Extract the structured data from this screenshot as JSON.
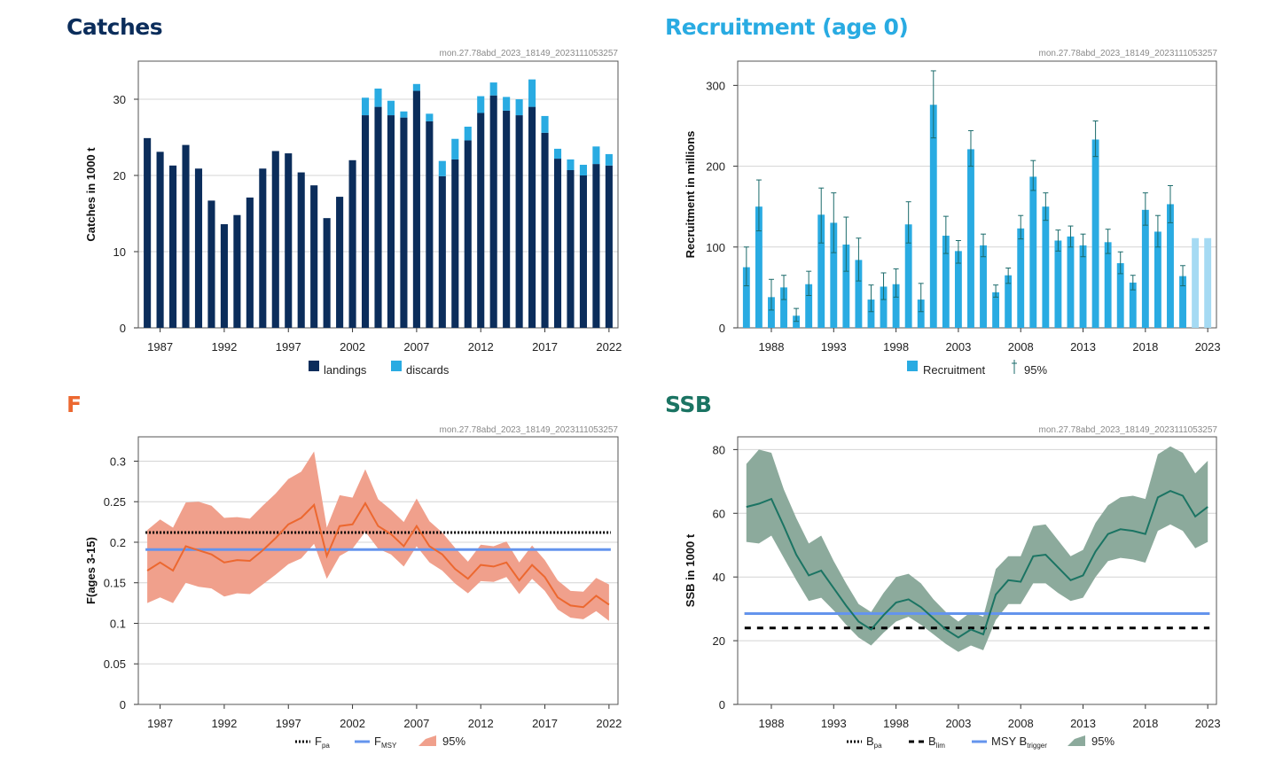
{
  "panels": {
    "catches": {
      "title": "Catches",
      "source": "mon.27.78abd_2023_18149_2023111053257",
      "color": "#0b2d5b"
    },
    "recruitment": {
      "title": "Recruitment (age 0)",
      "source": "mon.27.78abd_2023_18149_2023111053257",
      "color": "#29abe2"
    },
    "f": {
      "title": "F",
      "source": "mon.27.78abd_2023_18149_2023111053257",
      "color": "#ec6830"
    },
    "ssb": {
      "title": "SSB",
      "source": "mon.27.78abd_2023_18149_2023111053257",
      "color": "#1b7463"
    }
  },
  "chart_data": [
    {
      "id": "catches",
      "type": "bar",
      "stacked": true,
      "ylabel": "Catches in 1000 t",
      "ylim": [
        0,
        35
      ],
      "yticks": [
        0,
        10,
        20,
        30
      ],
      "xticks": [
        1987,
        1992,
        1997,
        2002,
        2007,
        2012,
        2017,
        2022
      ],
      "x": [
        1986,
        1987,
        1988,
        1989,
        1990,
        1991,
        1992,
        1993,
        1994,
        1995,
        1996,
        1997,
        1998,
        1999,
        2000,
        2001,
        2002,
        2003,
        2004,
        2005,
        2006,
        2007,
        2008,
        2009,
        2010,
        2011,
        2012,
        2013,
        2014,
        2015,
        2016,
        2017,
        2018,
        2019,
        2020,
        2021,
        2022
      ],
      "series": [
        {
          "name": "landings",
          "color": "#0b2d5b",
          "values": [
            24.9,
            23.1,
            21.3,
            24.0,
            20.9,
            16.7,
            13.6,
            14.8,
            17.1,
            20.9,
            23.2,
            22.9,
            20.4,
            18.7,
            14.4,
            17.2,
            22.0,
            27.9,
            29.0,
            27.9,
            27.6,
            31.1,
            27.1,
            19.9,
            22.1,
            24.6,
            28.2,
            30.5,
            28.5,
            27.9,
            29.0,
            25.6,
            22.2,
            20.7,
            20.0,
            21.5,
            21.3
          ]
        },
        {
          "name": "discards",
          "color": "#29abe2",
          "values": [
            0,
            0,
            0,
            0,
            0,
            0,
            0,
            0,
            0,
            0,
            0,
            0,
            0,
            0,
            0,
            0,
            0,
            2.3,
            2.4,
            1.9,
            0.8,
            0.9,
            1.0,
            2.0,
            2.7,
            1.8,
            2.2,
            1.7,
            1.8,
            2.1,
            3.6,
            2.2,
            1.3,
            1.4,
            1.4,
            2.3,
            1.5
          ]
        }
      ]
    },
    {
      "id": "recruitment",
      "type": "bar",
      "ylabel": "Recruitment in millions",
      "ylim": [
        0,
        330
      ],
      "yticks": [
        0,
        100,
        200,
        300
      ],
      "xticks": [
        1988,
        1993,
        1998,
        2003,
        2008,
        2013,
        2018,
        2023
      ],
      "x": [
        1986,
        1987,
        1988,
        1989,
        1990,
        1991,
        1992,
        1993,
        1994,
        1995,
        1996,
        1997,
        1998,
        1999,
        2000,
        2001,
        2002,
        2003,
        2004,
        2005,
        2006,
        2007,
        2008,
        2009,
        2010,
        2011,
        2012,
        2013,
        2014,
        2015,
        2016,
        2017,
        2018,
        2019,
        2020,
        2021,
        2022,
        2023
      ],
      "series": [
        {
          "name": "Recruitment",
          "color": "#29abe2",
          "values": [
            75,
            150,
            38,
            50,
            15,
            54,
            140,
            130,
            103,
            84,
            35,
            51,
            54,
            128,
            35,
            276,
            114,
            95,
            221,
            102,
            44,
            65,
            123,
            187,
            150,
            108,
            113,
            102,
            233,
            106,
            80,
            56,
            146,
            119,
            153,
            64,
            111,
            111
          ]
        }
      ],
      "assumed_color": "#a5daf3",
      "assumed_years": [
        2022,
        2023
      ],
      "ci_legend": "95%",
      "ci_color": "#1b6b6b",
      "ci_low": [
        52,
        120,
        22,
        35,
        8,
        40,
        105,
        93,
        70,
        58,
        20,
        35,
        38,
        105,
        20,
        235,
        92,
        80,
        200,
        88,
        38,
        55,
        110,
        170,
        133,
        95,
        100,
        88,
        212,
        92,
        67,
        47,
        127,
        100,
        130,
        52,
        null,
        null
      ],
      "ci_high": [
        100,
        183,
        60,
        65,
        24,
        70,
        173,
        167,
        137,
        111,
        53,
        68,
        73,
        156,
        55,
        318,
        138,
        108,
        244,
        116,
        53,
        74,
        139,
        207,
        167,
        121,
        126,
        116,
        256,
        122,
        94,
        65,
        167,
        139,
        176,
        77,
        null,
        null
      ]
    },
    {
      "id": "f",
      "type": "line",
      "ylabel": "F(ages 3-15)",
      "ylim": [
        0,
        0.33
      ],
      "yticks": [
        0,
        0.05,
        0.1,
        0.15,
        0.2,
        0.25,
        0.3
      ],
      "ytick_labels": [
        "0",
        "0.05",
        "0.1",
        "0.15",
        "0.2",
        "0.25",
        "0.3"
      ],
      "xticks": [
        1987,
        1992,
        1997,
        2002,
        2007,
        2012,
        2017,
        2022
      ],
      "x": [
        1986,
        1987,
        1988,
        1989,
        1990,
        1991,
        1992,
        1993,
        1994,
        1995,
        1996,
        1997,
        1998,
        1999,
        2000,
        2001,
        2002,
        2003,
        2004,
        2005,
        2006,
        2007,
        2008,
        2009,
        2010,
        2011,
        2012,
        2013,
        2014,
        2015,
        2016,
        2017,
        2018,
        2019,
        2020,
        2021,
        2022
      ],
      "series": [
        {
          "name": "F",
          "color": "#ec6830",
          "values": [
            0.165,
            0.175,
            0.165,
            0.195,
            0.19,
            0.185,
            0.175,
            0.178,
            0.177,
            0.19,
            0.205,
            0.222,
            0.23,
            0.246,
            0.183,
            0.22,
            0.222,
            0.248,
            0.22,
            0.21,
            0.195,
            0.22,
            0.195,
            0.185,
            0.167,
            0.155,
            0.172,
            0.17,
            0.175,
            0.153,
            0.172,
            0.157,
            0.132,
            0.122,
            0.12,
            0.134,
            0.123
          ]
        }
      ],
      "band": {
        "name": "95%",
        "color": "#f0a08c",
        "low": [
          0.125,
          0.132,
          0.125,
          0.15,
          0.145,
          0.143,
          0.133,
          0.137,
          0.136,
          0.148,
          0.16,
          0.173,
          0.18,
          0.198,
          0.155,
          0.183,
          0.192,
          0.213,
          0.192,
          0.185,
          0.17,
          0.195,
          0.175,
          0.165,
          0.149,
          0.137,
          0.152,
          0.151,
          0.157,
          0.136,
          0.155,
          0.14,
          0.117,
          0.107,
          0.105,
          0.115,
          0.103
        ],
        "high": [
          0.215,
          0.228,
          0.218,
          0.249,
          0.25,
          0.245,
          0.23,
          0.231,
          0.229,
          0.245,
          0.26,
          0.278,
          0.287,
          0.312,
          0.218,
          0.258,
          0.255,
          0.29,
          0.253,
          0.24,
          0.225,
          0.254,
          0.226,
          0.212,
          0.193,
          0.176,
          0.197,
          0.195,
          0.201,
          0.175,
          0.196,
          0.178,
          0.153,
          0.14,
          0.139,
          0.156,
          0.148
        ]
      },
      "refs": [
        {
          "name": "F",
          "sub": "pa",
          "value": 0.212,
          "style": "dotted",
          "color": "#000000"
        },
        {
          "name": "F",
          "sub": "MSY",
          "value": 0.191,
          "style": "solid",
          "color": "#6494ed"
        }
      ]
    },
    {
      "id": "ssb",
      "type": "line",
      "ylabel": "SSB in 1000 t",
      "ylim": [
        0,
        84
      ],
      "yticks": [
        0,
        20,
        40,
        60,
        80
      ],
      "xticks": [
        1988,
        1993,
        1998,
        2003,
        2008,
        2013,
        2018,
        2023
      ],
      "x": [
        1986,
        1987,
        1988,
        1989,
        1990,
        1991,
        1992,
        1993,
        1994,
        1995,
        1996,
        1997,
        1998,
        1999,
        2000,
        2001,
        2002,
        2003,
        2004,
        2005,
        2006,
        2007,
        2008,
        2009,
        2010,
        2011,
        2012,
        2013,
        2014,
        2015,
        2016,
        2017,
        2018,
        2019,
        2020,
        2021,
        2022,
        2023
      ],
      "series": [
        {
          "name": "SSB",
          "color": "#1b7463",
          "values": [
            62,
            63,
            64.5,
            56,
            47,
            40.5,
            42,
            36.5,
            31,
            26,
            23.5,
            28,
            32,
            33,
            30.5,
            27,
            23.5,
            21,
            23.5,
            22,
            34.5,
            39,
            38.5,
            46.5,
            47,
            43,
            39,
            40.5,
            48,
            53.5,
            55,
            54.5,
            53.5,
            65,
            67,
            65.5,
            59,
            62
          ]
        }
      ],
      "band": {
        "name": "95%",
        "color": "#8caa9c",
        "low": [
          51,
          50.5,
          53,
          46,
          39,
          32.5,
          33.5,
          29.5,
          25,
          21,
          18.5,
          22.5,
          26,
          27.5,
          25,
          22,
          19,
          16.5,
          18.5,
          17,
          26.5,
          31.5,
          31.5,
          38,
          38,
          35,
          32.5,
          33.5,
          40,
          45,
          46,
          45.5,
          44.5,
          54.5,
          56.5,
          54.5,
          49,
          51
        ],
        "high": [
          75.5,
          80,
          79,
          67.5,
          58.5,
          50.5,
          53,
          45,
          38,
          31.5,
          29,
          35,
          40,
          41,
          38,
          33,
          29,
          26,
          29,
          27.5,
          42.5,
          46.5,
          46.5,
          56,
          56.5,
          51.5,
          46.5,
          48.5,
          57,
          62.5,
          65,
          65.5,
          64.5,
          78.5,
          81,
          79,
          72.5,
          76.5
        ]
      },
      "refs": [
        {
          "name": "B",
          "sub": "pa",
          "value": 28.5,
          "style": "dotted",
          "color": "#000000"
        },
        {
          "name": "B",
          "sub": "lim",
          "value": 24,
          "style": "dashed",
          "color": "#000000"
        },
        {
          "name": "MSY B",
          "sub": "trigger",
          "value": 28.5,
          "style": "solid",
          "color": "#6494ed"
        }
      ]
    }
  ]
}
